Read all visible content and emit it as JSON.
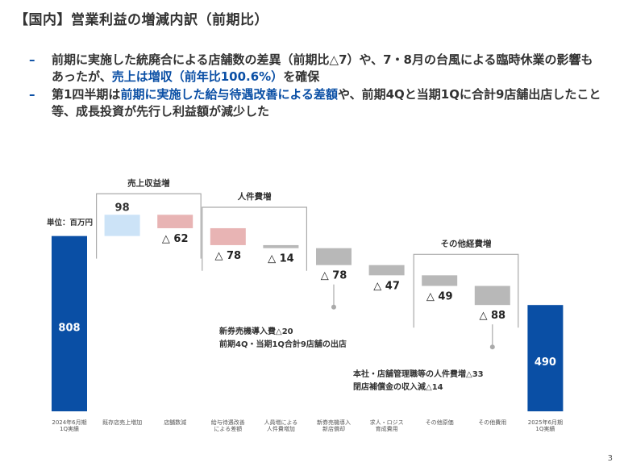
{
  "title": "【国内】営業利益の増減内訳（前期比）",
  "bullets": [
    {
      "parts": [
        {
          "text": "前期に実施した統廃合による店舗数の差異（前期比△7）や、7・8月の台風による臨時休業の影響もあったが、",
          "hl": false
        },
        {
          "text": "売上は増収（前年比100.6%）",
          "hl": true
        },
        {
          "text": "を確保",
          "hl": false
        }
      ]
    },
    {
      "parts": [
        {
          "text": "第1四半期は",
          "hl": false
        },
        {
          "text": "前期に実施した給与待遇改善による差額",
          "hl": true
        },
        {
          "text": "や、前期4Qと当期1Qに合計9店舗出店したこと等、成長投資が先行し利益額が減少した",
          "hl": false
        }
      ]
    }
  ],
  "unit_label": "単位：百万円",
  "page_number": "3",
  "colors": {
    "total": "#0a4fa5",
    "increase": "#cce3f7",
    "decrease_red": "#e8b4b4",
    "decrease_gray": "#b8b8b8",
    "accent": "#0a4fa5"
  },
  "chart_data": {
    "type": "bar",
    "subtype": "waterfall",
    "categories": [
      "2024年6月期\n1Q実績",
      "既存店売上増加",
      "店舗数減",
      "給与待遇改善\nによる差額",
      "人員増による\n人件費増加",
      "新券売機導入\n新店償却",
      "求人・ロジス\n育成費用",
      "その他原価",
      "その他費用",
      "2025年6月期\n1Q実績"
    ],
    "values": [
      808,
      98,
      -62,
      -78,
      -14,
      -78,
      -47,
      -49,
      -88,
      490
    ],
    "value_labels": [
      "808",
      "98",
      "△ 62",
      "△ 78",
      "△ 14",
      "△ 78",
      "△ 47",
      "△ 49",
      "△ 88",
      "490"
    ],
    "kinds": [
      "total",
      "increase",
      "decrease_red",
      "decrease_red",
      "decrease_gray",
      "decrease_gray",
      "decrease_gray",
      "decrease_gray",
      "decrease_gray",
      "total"
    ],
    "groups": [
      {
        "label": "売上収益増",
        "from": 1,
        "to": 2
      },
      {
        "label": "人件費増",
        "from": 3,
        "to": 4
      },
      {
        "label": "その他経費増",
        "from": 7,
        "to": 8
      }
    ],
    "annotations": [
      {
        "bar": 5,
        "lines": [
          "新券売機導入費△20",
          "前期4Q・当期1Q合計9店舗の出店"
        ]
      },
      {
        "bar": 8,
        "lines": [
          "本社・店舗管理職等の人件費増△33",
          "閉店補償金の収入減△14"
        ]
      }
    ]
  }
}
